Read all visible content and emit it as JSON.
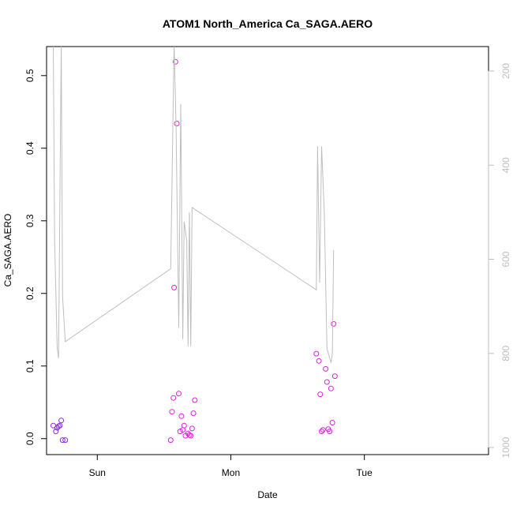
{
  "chart_data": {
    "type": "scatter",
    "title": "ATOM1 North_America Ca_SAGA.AERO",
    "xlabel": "Date",
    "ylabel": "Ca_SAGA.AERO",
    "x_tick_labels": [
      "Sun",
      "Mon",
      "Tue"
    ],
    "x_tick_values": [
      1.0,
      2.0,
      3.0
    ],
    "xlim": [
      0.62,
      3.93
    ],
    "ylim": [
      -0.022,
      0.54
    ],
    "y_ticks": [
      0.0,
      0.1,
      0.2,
      0.3,
      0.4,
      0.5
    ],
    "y_tick_labels": [
      "0.0",
      "0.1",
      "0.2",
      "0.3",
      "0.4",
      "0.5"
    ],
    "secondary_axis": {
      "side": "right",
      "color": "#bebebe",
      "reversed": true,
      "ylim": [
        1015,
        148
      ],
      "ticks": [
        200,
        400,
        600,
        800,
        1000
      ],
      "tick_labels": [
        "200",
        "400",
        "600",
        "800",
        "1000"
      ]
    },
    "series": [
      {
        "kind": "points",
        "color": "#8a2be2",
        "points": [
          [
            0.67,
            0.018
          ],
          [
            0.69,
            0.01
          ],
          [
            0.7,
            0.015
          ],
          [
            0.71,
            0.017
          ],
          [
            0.72,
            0.018
          ],
          [
            0.73,
            0.025
          ],
          [
            0.74,
            -0.002
          ],
          [
            0.76,
            -0.002
          ]
        ]
      },
      {
        "kind": "points",
        "color": "#e020e0",
        "points": [
          [
            1.55,
            -0.002
          ],
          [
            1.56,
            0.037
          ],
          [
            1.57,
            0.056
          ],
          [
            1.575,
            0.208
          ],
          [
            1.585,
            0.519
          ],
          [
            1.595,
            0.434
          ],
          [
            1.61,
            0.062
          ],
          [
            1.62,
            0.01
          ],
          [
            1.63,
            0.031
          ],
          [
            1.64,
            0.012
          ],
          [
            1.65,
            0.018
          ],
          [
            1.66,
            0.004
          ],
          [
            1.68,
            0.007
          ],
          [
            1.69,
            0.005
          ],
          [
            1.7,
            0.004
          ],
          [
            1.71,
            0.014
          ],
          [
            1.72,
            0.035
          ],
          [
            1.73,
            0.053
          ],
          [
            2.64,
            0.117
          ],
          [
            2.66,
            0.107
          ],
          [
            2.67,
            0.061
          ],
          [
            2.68,
            0.01
          ],
          [
            2.69,
            0.012
          ],
          [
            2.71,
            0.096
          ],
          [
            2.72,
            0.078
          ],
          [
            2.73,
            0.013
          ],
          [
            2.74,
            0.01
          ],
          [
            2.75,
            0.069
          ],
          [
            2.76,
            0.022
          ],
          [
            2.77,
            0.158
          ],
          [
            2.78,
            0.086
          ]
        ]
      },
      {
        "kind": "line",
        "axis": "secondary",
        "color": "#bebebe",
        "points": [
          [
            0.67,
            140
          ],
          [
            0.68,
            560
          ],
          [
            0.7,
            790
          ],
          [
            0.71,
            810
          ],
          [
            0.73,
            140
          ],
          [
            0.74,
            680
          ],
          [
            0.76,
            775
          ],
          [
            1.55,
            620
          ],
          [
            1.575,
            140
          ],
          [
            1.59,
            320
          ],
          [
            1.61,
            745
          ],
          [
            1.625,
            270
          ],
          [
            1.64,
            770
          ],
          [
            1.65,
            520
          ],
          [
            1.67,
            560
          ],
          [
            1.68,
            785
          ],
          [
            1.69,
            500
          ],
          [
            1.7,
            785
          ],
          [
            1.71,
            490
          ],
          [
            2.64,
            665
          ],
          [
            2.65,
            360
          ],
          [
            2.665,
            650
          ],
          [
            2.68,
            360
          ],
          [
            2.7,
            500
          ],
          [
            2.72,
            790
          ],
          [
            2.75,
            820
          ],
          [
            2.76,
            800
          ],
          [
            2.77,
            580
          ]
        ]
      }
    ]
  }
}
